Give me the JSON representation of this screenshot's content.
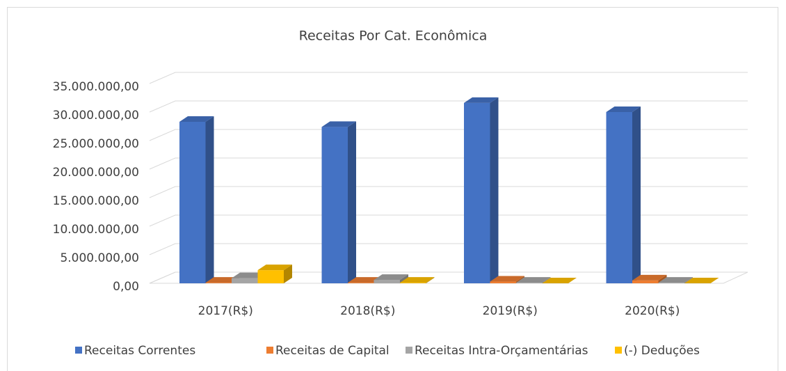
{
  "chart_data": {
    "type": "bar3d",
    "title": "Receitas Por Cat. Econômica",
    "categories": [
      "2017(R$)",
      "2018(R$)",
      "2019(R$)",
      "2020(R$)"
    ],
    "series": [
      {
        "name": "Receitas Correntes",
        "color": "#4472c4",
        "values": [
          28300000,
          27400000,
          31600000,
          30000000
        ]
      },
      {
        "name": "Receitas de Capital",
        "color": "#ed7d31",
        "values": [
          100000,
          100000,
          300000,
          500000
        ]
      },
      {
        "name": "Receitas Intra-Orçamentárias",
        "color": "#a5a5a5",
        "values": [
          900000,
          600000,
          100000,
          100000
        ]
      },
      {
        "name": "(-) Deduções",
        "color": "#ffc000",
        "values": [
          2300000,
          100000,
          0,
          0
        ]
      }
    ],
    "ylim": [
      0,
      35000000
    ],
    "yticks": [
      {
        "value": 0,
        "label": "0,00"
      },
      {
        "value": 5000000,
        "label": "5.000.000,00"
      },
      {
        "value": 10000000,
        "label": "10.000.000,00"
      },
      {
        "value": 15000000,
        "label": "15.000.000,00"
      },
      {
        "value": 20000000,
        "label": "20.000.000,00"
      },
      {
        "value": 25000000,
        "label": "25.000.000,00"
      },
      {
        "value": 30000000,
        "label": "30.000.000,00"
      },
      {
        "value": 35000000,
        "label": "35.000.000,00"
      }
    ],
    "grid": true,
    "legend": "bottom"
  }
}
